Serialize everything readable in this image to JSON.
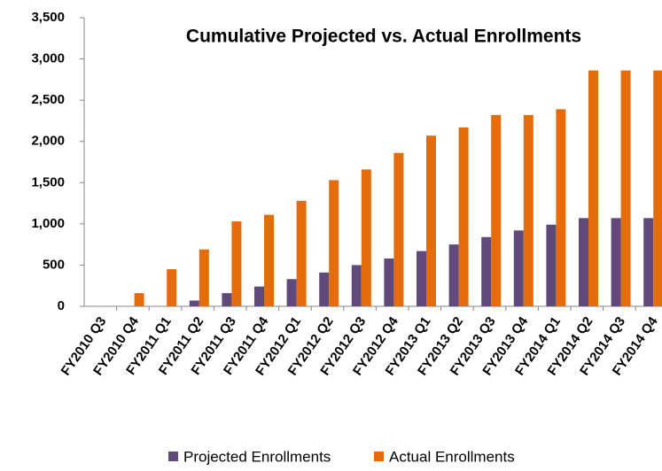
{
  "chart_data": {
    "type": "bar",
    "title": "Cumulative Projected vs. Actual Enrollments",
    "categories": [
      "FY2010 Q3",
      "FY2010 Q4",
      "FY2011 Q1",
      "FY2011 Q2",
      "FY2011 Q3",
      "FY2011 Q4",
      "FY2012 Q1",
      "FY2012 Q2",
      "FY2012 Q3",
      "FY2012 Q4",
      "FY2013 Q1",
      "FY2013 Q2",
      "FY2013 Q3",
      "FY2013 Q4",
      "FY2014 Q1",
      "FY2014 Q2",
      "FY2014 Q3",
      "FY2014 Q4"
    ],
    "series": [
      {
        "name": "Projected Enrollments",
        "color": "#604a7b",
        "values": [
          0,
          0,
          0,
          70,
          160,
          240,
          330,
          410,
          500,
          580,
          670,
          750,
          840,
          920,
          990,
          1070,
          1070,
          1070
        ]
      },
      {
        "name": "Actual Enrollments",
        "color": "#e46c0a",
        "values": [
          0,
          160,
          450,
          690,
          1030,
          1110,
          1280,
          1530,
          1660,
          1860,
          2070,
          2170,
          2320,
          2320,
          2390,
          2860,
          2860,
          2860
        ]
      }
    ],
    "ylim": [
      0,
      3500
    ],
    "yticks": [
      0,
      500,
      {
        "value": 1000,
        "label": "1,000"
      },
      {
        "value": 1500,
        "label": "1,500"
      },
      {
        "value": 2000,
        "label": "2,000"
      },
      {
        "value": 2500,
        "label": "2,500"
      },
      {
        "value": 3000,
        "label": "3,000"
      },
      {
        "value": 3500,
        "label": "3,500"
      }
    ],
    "legend": "bottom"
  }
}
